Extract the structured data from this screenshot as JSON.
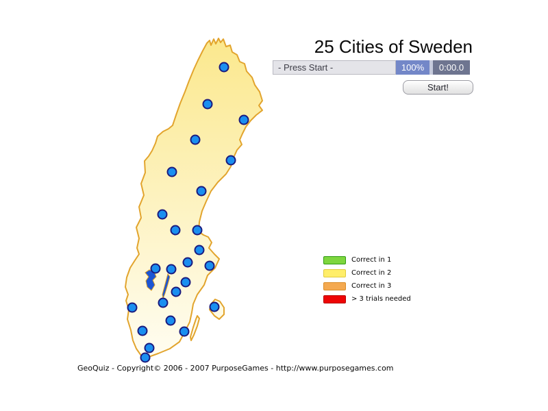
{
  "title": "25 Cities of Sweden",
  "status_bar": {
    "label": "- Press Start -",
    "percent": "100%",
    "timer": "0:00.0"
  },
  "start_button_label": "Start!",
  "legend": {
    "items": [
      {
        "label": "Correct in 1",
        "color": "#7ed63e",
        "border": "#2e9a12"
      },
      {
        "label": "Correct in 2",
        "color": "#ffee6a",
        "border": "#e0cb3c"
      },
      {
        "label": "Correct in 3",
        "color": "#f4a950",
        "border": "#d98c28"
      },
      {
        "label": "> 3 trials needed",
        "color": "#ee0505",
        "border": "#b50000"
      }
    ]
  },
  "footer": "GeoQuiz - Copyright© 2006 - 2007 PurposeGames - http://www.purposegames.com",
  "map": {
    "dot_color": "#1a8ff0",
    "dot_border": "#1b1b7e",
    "fill_top": "#fbe88d",
    "fill_bottom": "#fffdf2",
    "outline_color": "#e2a42d",
    "lake_color": "#1c55d4",
    "cities": [
      [
        327,
        98
      ],
      [
        303,
        152
      ],
      [
        356,
        175
      ],
      [
        285,
        204
      ],
      [
        337,
        234
      ],
      [
        251,
        251
      ],
      [
        294,
        279
      ],
      [
        237,
        313
      ],
      [
        256,
        336
      ],
      [
        288,
        336
      ],
      [
        291,
        365
      ],
      [
        274,
        383
      ],
      [
        227,
        392
      ],
      [
        250,
        393
      ],
      [
        306,
        388
      ],
      [
        271,
        412
      ],
      [
        257,
        426
      ],
      [
        238,
        442
      ],
      [
        193,
        449
      ],
      [
        313,
        448
      ],
      [
        249,
        468
      ],
      [
        208,
        483
      ],
      [
        269,
        484
      ],
      [
        218,
        508
      ],
      [
        212,
        522
      ]
    ]
  }
}
